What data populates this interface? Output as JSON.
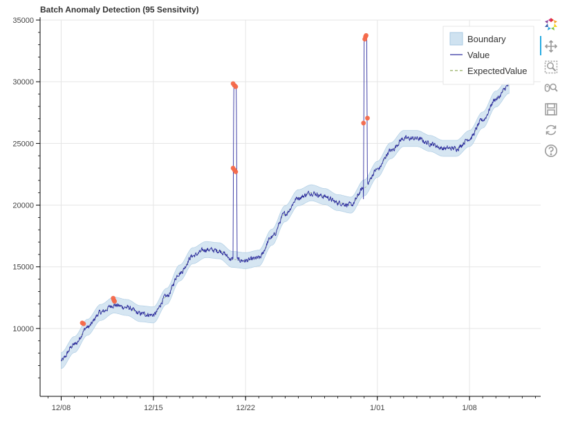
{
  "chart_data": {
    "type": "line",
    "title": "Batch Anomaly Detection (95 Sensitvity)",
    "xlabel": "",
    "ylabel": "",
    "x_ticks": [
      {
        "label": "12/08",
        "day": 0
      },
      {
        "label": "12/15",
        "day": 7
      },
      {
        "label": "12/22",
        "day": 14
      },
      {
        "label": "1/01",
        "day": 24
      },
      {
        "label": "1/08",
        "day": 31
      }
    ],
    "xlim_days": [
      -1.6,
      36.4
    ],
    "ylim": [
      4500,
      35000
    ],
    "y_ticks": [
      10000,
      15000,
      20000,
      25000,
      30000,
      35000
    ],
    "grid": true,
    "legend": {
      "position": "top-right",
      "entries": [
        "Boundary",
        "Value",
        "ExpectedValue"
      ]
    },
    "expected": {
      "day": [
        0,
        1,
        2,
        3,
        4,
        5,
        6,
        7,
        8,
        9,
        10,
        11,
        12,
        13,
        14,
        15,
        16,
        17,
        18,
        19,
        20,
        21,
        22,
        23,
        24,
        25,
        26,
        27,
        28,
        29,
        30,
        31,
        32,
        33,
        34
      ],
      "value": [
        7400,
        8700,
        10100,
        11300,
        11900,
        11700,
        11200,
        11100,
        12600,
        14500,
        15900,
        16400,
        16300,
        15600,
        15500,
        15700,
        17400,
        19300,
        20600,
        21000,
        20700,
        20200,
        20000,
        21400,
        22900,
        24400,
        25400,
        25400,
        25000,
        24600,
        24600,
        25400,
        26900,
        28600,
        29700
      ]
    },
    "band_halfwidth": 650,
    "series": [
      {
        "name": "Value",
        "color": "#2c2c9e",
        "noise_amplitude": 350
      }
    ],
    "spikes": [
      {
        "day_start": 13.05,
        "day_end": 13.35,
        "base": 16500,
        "top": 29800
      },
      {
        "day_start": 22.95,
        "day_end": 23.25,
        "base": 20500,
        "top": 33600
      }
    ],
    "anomalies": {
      "color": "#f4694a",
      "points": [
        {
          "day": 1.6,
          "value": 10450
        },
        {
          "day": 1.7,
          "value": 10380
        },
        {
          "day": 3.95,
          "value": 12450
        },
        {
          "day": 4.0,
          "value": 12300
        },
        {
          "day": 4.05,
          "value": 12200
        },
        {
          "day": 13.05,
          "value": 29850
        },
        {
          "day": 13.15,
          "value": 29700
        },
        {
          "day": 13.05,
          "value": 23000
        },
        {
          "day": 13.15,
          "value": 22850
        },
        {
          "day": 13.25,
          "value": 22700
        },
        {
          "day": 13.25,
          "value": 29600
        },
        {
          "day": 22.95,
          "value": 26650
        },
        {
          "day": 23.25,
          "value": 27050
        },
        {
          "day": 23.05,
          "value": 33450
        },
        {
          "day": 23.1,
          "value": 33650
        },
        {
          "day": 23.15,
          "value": 33750
        }
      ]
    },
    "colors": {
      "band_fill": "#cfe2f0",
      "band_edge": "#a9c9e2",
      "expected": "#7a9a3a",
      "grid": "#e5e5e5"
    }
  },
  "toolbar": {
    "tools": [
      "bokeh-logo-icon",
      "pan-icon",
      "box-zoom-icon",
      "wheel-zoom-icon",
      "save-icon",
      "reset-icon",
      "help-icon"
    ],
    "active": "pan-icon"
  }
}
